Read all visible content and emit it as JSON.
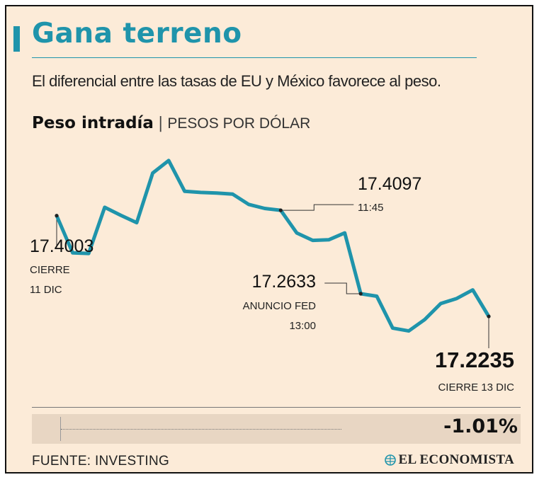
{
  "header": {
    "title": "Gana terreno",
    "subtitle": "El diferencial entre las tasas de EU y México favorece al peso."
  },
  "chart_heading": {
    "label": "Peso intradía",
    "separator": "|",
    "unit": "PESOS POR DÓLAR"
  },
  "chart_data": {
    "type": "line",
    "title": "Peso intradía",
    "ylabel": "PESOS POR DÓLAR",
    "line_color": "#1f94ab",
    "series": [
      {
        "values": [
          17.4003,
          17.335,
          17.334,
          17.415,
          17.401,
          17.388,
          17.475,
          17.497,
          17.443,
          17.441,
          17.44,
          17.438,
          17.42,
          17.413,
          17.4097,
          17.37,
          17.357,
          17.358,
          17.37,
          17.2633,
          17.259,
          17.203,
          17.198,
          17.218,
          17.246,
          17.255,
          17.27,
          17.2235
        ]
      }
    ],
    "annotations": [
      {
        "value": "17.4003",
        "label_lines": [
          "CIERRE",
          "11 DIC"
        ]
      },
      {
        "value": "17.4097",
        "label_lines": [
          "11:45"
        ]
      },
      {
        "value": "17.2633",
        "label_lines": [
          "ANUNCIO FED",
          "13:00"
        ]
      },
      {
        "value": "17.2235",
        "label_lines": [
          "CIERRE 13 DIC"
        ]
      }
    ]
  },
  "summary": {
    "change": "-1.01%"
  },
  "footer": {
    "source": "FUENTE: INVESTING",
    "brand": "EL ECONOMISTA",
    "brand_icon": "globe-logo-icon"
  }
}
